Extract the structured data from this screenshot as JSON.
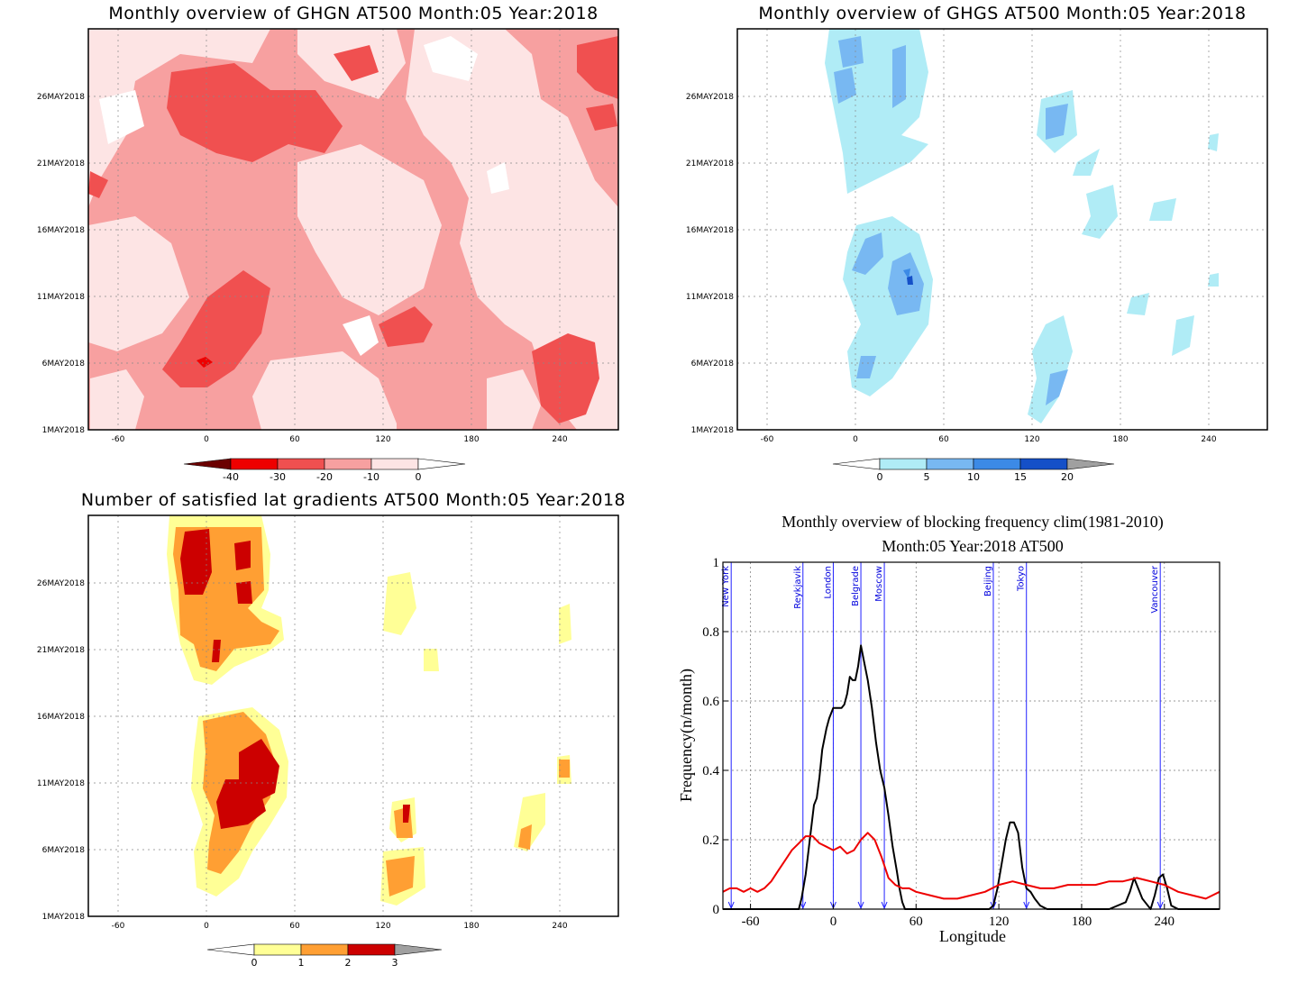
{
  "chart_data": [
    {
      "type": "heatmap",
      "title": "Monthly overview of GHGN AT500 Month:05 Year:2018",
      "x_ticks": [
        -60,
        0,
        60,
        120,
        180,
        240
      ],
      "xlim": [
        -80,
        280
      ],
      "y_ticks": [
        "1MAY2018",
        "6MAY2018",
        "11MAY2018",
        "16MAY2018",
        "21MAY2018",
        "26MAY2018"
      ],
      "colorbar": {
        "ticks": [
          "-40",
          "-30",
          "-20",
          "-10",
          "0"
        ],
        "colors": [
          "#6b0000",
          "#ee0000",
          "#f05050",
          "#f7a0a0",
          "#fde4e4",
          "#ffffff"
        ]
      }
    },
    {
      "type": "heatmap",
      "title": "Monthly overview of GHGS AT500 Month:05 Year:2018",
      "x_ticks": [
        -60,
        0,
        60,
        120,
        180,
        240
      ],
      "xlim": [
        -80,
        280
      ],
      "y_ticks": [
        "1MAY2018",
        "6MAY2018",
        "11MAY2018",
        "16MAY2018",
        "21MAY2018",
        "26MAY2018"
      ],
      "colorbar": {
        "ticks": [
          "0",
          "5",
          "10",
          "15",
          "20"
        ],
        "colors": [
          "#ffffff",
          "#b0ecf6",
          "#78b8f2",
          "#3c8ae6",
          "#1550c8",
          "#a0a0a0"
        ]
      }
    },
    {
      "type": "heatmap",
      "title": "Number of satisfied lat gradients AT500 Month:05 Year:2018",
      "x_ticks": [
        -60,
        0,
        60,
        120,
        180,
        240
      ],
      "xlim": [
        -80,
        280
      ],
      "y_ticks": [
        "1MAY2018",
        "6MAY2018",
        "11MAY2018",
        "16MAY2018",
        "21MAY2018",
        "26MAY2018"
      ],
      "colorbar": {
        "ticks": [
          "0",
          "1",
          "2",
          "3"
        ],
        "colors": [
          "#ffffff",
          "#ffff96",
          "#ff9f33",
          "#cc0000",
          "#a0a0a0"
        ]
      }
    },
    {
      "type": "line",
      "title": "Monthly overview of blocking frequency clim(1981-2010)",
      "subtitle": "Month:05 Year:2018  AT500",
      "xlabel": "Longitude",
      "ylabel": "Frequency(n/month)",
      "xlim": [
        -80,
        280
      ],
      "ylim": [
        0,
        1
      ],
      "x_ticks": [
        -60,
        0,
        60,
        120,
        180,
        240
      ],
      "y_ticks": [
        "0",
        "0.2",
        "0.4",
        "0.6",
        "0.8",
        "1"
      ],
      "grid": true,
      "cities": [
        {
          "name": "New York",
          "lon": -74
        },
        {
          "name": "Reykjavik",
          "lon": -22
        },
        {
          "name": "London",
          "lon": 0
        },
        {
          "name": "Belgrade",
          "lon": 20
        },
        {
          "name": "Moscow",
          "lon": 37
        },
        {
          "name": "Beijing",
          "lon": 116
        },
        {
          "name": "Tokyo",
          "lon": 140
        },
        {
          "name": "Vancouver",
          "lon": 237
        }
      ],
      "series": [
        {
          "color": "#000000",
          "x": [
            -80,
            -25,
            -23,
            -20,
            -17,
            -14,
            -12,
            -10,
            -8,
            -5,
            -3,
            0,
            3,
            6,
            8,
            10,
            12,
            14,
            16,
            18,
            20,
            22,
            25,
            28,
            31,
            34,
            37,
            40,
            43,
            46,
            48,
            50,
            52,
            55,
            80,
            100,
            113,
            116,
            119,
            122,
            125,
            128,
            131,
            134,
            137,
            140,
            143,
            146,
            150,
            155,
            200,
            212,
            215,
            218,
            221,
            224,
            230,
            233,
            236,
            239,
            242,
            245,
            250,
            280
          ],
          "y": [
            0,
            0,
            0.03,
            0.1,
            0.2,
            0.3,
            0.32,
            0.38,
            0.46,
            0.52,
            0.55,
            0.58,
            0.58,
            0.58,
            0.59,
            0.62,
            0.67,
            0.66,
            0.66,
            0.7,
            0.76,
            0.72,
            0.66,
            0.58,
            0.48,
            0.4,
            0.35,
            0.27,
            0.18,
            0.11,
            0.06,
            0.02,
            0,
            0,
            0,
            0,
            0,
            0.01,
            0.06,
            0.13,
            0.2,
            0.25,
            0.25,
            0.22,
            0.12,
            0.06,
            0.05,
            0.03,
            0.01,
            0,
            0,
            0.02,
            0.05,
            0.09,
            0.06,
            0.03,
            0,
            0.04,
            0.09,
            0.1,
            0.06,
            0.01,
            0,
            0
          ]
        },
        {
          "color": "#ee0000",
          "x": [
            -80,
            -75,
            -70,
            -65,
            -60,
            -55,
            -50,
            -45,
            -40,
            -35,
            -30,
            -25,
            -20,
            -15,
            -10,
            -5,
            0,
            5,
            10,
            15,
            20,
            25,
            30,
            35,
            40,
            45,
            50,
            55,
            60,
            70,
            80,
            90,
            100,
            110,
            120,
            130,
            140,
            150,
            160,
            170,
            180,
            190,
            200,
            210,
            220,
            230,
            240,
            250,
            260,
            270,
            280
          ],
          "y": [
            0.05,
            0.06,
            0.06,
            0.05,
            0.06,
            0.05,
            0.06,
            0.08,
            0.11,
            0.14,
            0.17,
            0.19,
            0.21,
            0.21,
            0.19,
            0.18,
            0.17,
            0.18,
            0.16,
            0.17,
            0.2,
            0.22,
            0.2,
            0.15,
            0.09,
            0.07,
            0.06,
            0.06,
            0.05,
            0.04,
            0.03,
            0.03,
            0.04,
            0.05,
            0.07,
            0.08,
            0.07,
            0.06,
            0.06,
            0.07,
            0.07,
            0.07,
            0.08,
            0.08,
            0.09,
            0.08,
            0.07,
            0.05,
            0.04,
            0.03,
            0.05
          ]
        }
      ]
    }
  ]
}
